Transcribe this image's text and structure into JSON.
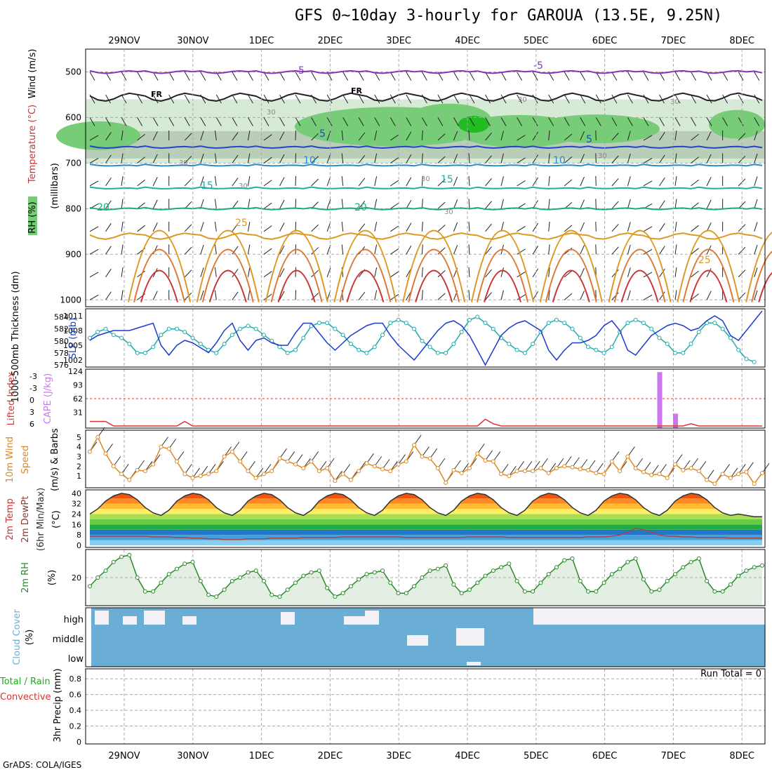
{
  "title": "GFS 0~10day 3-hourly for GAROUA (13.5E, 9.25N)",
  "credit": "GrADS: COLA/IGES",
  "dates": [
    "29NOV",
    "30NOV",
    "1DEC",
    "2DEC",
    "3DEC",
    "4DEC",
    "5DEC",
    "6DEC",
    "7DEC",
    "8DEC"
  ],
  "colors": {
    "grid": "#aaaaaa",
    "rh_dark": "#22bb22",
    "rh_mid": "#77cc77",
    "rh_light": "#d6ead6",
    "slp": "#1a3ccc",
    "thick": "#22aaaa",
    "cape": "#cc77ee",
    "li": "#dd3333",
    "wind": "#dd8822",
    "rh2m": "#2a8a2a",
    "cloud": "#6aaed6",
    "precip_total": "#22aa22"
  },
  "panels": {
    "profile": {
      "ylabel_wind": "Wind (m/s)",
      "ylabel_temp": "Temperature (°C)",
      "ylabel_rh": "RH (%)",
      "ylabel_mb": "(millibars)",
      "levels": [
        "500",
        "600",
        "700",
        "800",
        "900",
        "1000"
      ],
      "fr_label": "FR",
      "temp_labels": [
        "-5",
        "-5",
        "5",
        "5",
        "10",
        "10",
        "15",
        "15",
        "20",
        "20",
        "25",
        "25"
      ],
      "rh_labels": [
        "30",
        "30",
        "30",
        "30",
        "30",
        "30",
        "30",
        "30"
      ]
    },
    "slp": {
      "ylabel_thick": "1000-500mb Thickness (dm)",
      "ylabel_slp": "SLP (mb)",
      "thick_ticks": [
        "584",
        "582",
        "580",
        "578",
        "576"
      ],
      "slp_ticks": [
        "1011",
        "1008",
        "1005",
        "1002"
      ]
    },
    "cape": {
      "ylabel_li": "Lifted Index",
      "ylabel_cape": "CAPE (J/kg)",
      "li_ticks": [
        "-3",
        "-3",
        "0",
        "3",
        "6"
      ],
      "cape_ticks": [
        "124",
        "93",
        "62",
        "31"
      ]
    },
    "wind10": {
      "ylabel": "10m Wind Speed (m/s) & Barbs",
      "ylabel1": "10m Wind",
      "ylabel2": "Speed",
      "ylabel3": "(m/s) & Barbs",
      "ticks": [
        "5",
        "4",
        "3",
        "2",
        "1"
      ]
    },
    "temp2m": {
      "ylabel1": "2m Temp",
      "ylabel2": "2m DewPt",
      "ylabel3": "(6hr Min/Max)",
      "ylabel4": "(°C)",
      "ticks": [
        "40",
        "32",
        "24",
        "16",
        "8",
        "0"
      ]
    },
    "rh2m": {
      "ylabel1": "2m RH",
      "ylabel2": "(%)",
      "ticks": [
        "20"
      ]
    },
    "cloud": {
      "ylabel1": "Cloud Cover",
      "ylabel2": "(%)",
      "rows": [
        "high",
        "middle",
        "low"
      ]
    },
    "precip": {
      "ylabel1": "Total / Rain",
      "ylabel2": "Convective",
      "ylabel3": "3hr Precip (mm)",
      "ticks": [
        "0.8",
        "0.6",
        "0.4",
        "0.2",
        "0"
      ],
      "run_total": "Run Total = 0"
    }
  },
  "chart_data": [
    {
      "type": "line",
      "name": "1000-500mb thickness",
      "units": "dm",
      "ylim": [
        576,
        585
      ],
      "values": [
        580.5,
        581.5,
        582,
        581,
        580.5,
        579.5,
        578,
        578,
        579,
        581,
        582,
        582,
        581.5,
        580.5,
        579.5,
        578.5,
        578,
        579.5,
        581,
        582,
        582.5,
        582,
        581,
        580,
        579,
        578,
        578.5,
        580.5,
        582.5,
        583,
        583,
        582,
        581,
        579.5,
        578.5,
        578,
        579,
        581,
        583,
        583.5,
        583,
        582,
        580,
        579,
        578,
        578,
        579.5,
        581.5,
        583.5,
        584,
        583,
        582,
        580.5,
        579.5,
        578.5,
        578,
        579.5,
        581.5,
        583,
        583.5,
        583,
        582,
        580.5,
        579,
        578.5,
        578,
        579,
        581.5,
        583,
        583.5,
        583,
        582,
        580.5,
        579.5,
        578,
        578,
        579.5,
        581.5,
        583,
        583,
        582,
        580.5,
        578.5,
        577,
        576.5
      ]
    },
    {
      "type": "line",
      "name": "SLP",
      "units": "mb",
      "ylim": [
        1001,
        1012
      ],
      "values": [
        1006,
        1007,
        1007.5,
        1008,
        1008,
        1008,
        1008.5,
        1009,
        1009.5,
        1005,
        1003,
        1005,
        1006,
        1005.5,
        1004.5,
        1003.5,
        1005.5,
        1008,
        1009.5,
        1006,
        1004,
        1006,
        1006.5,
        1005.5,
        1005,
        1005,
        1007.5,
        1009.5,
        1009.5,
        1007.5,
        1005.5,
        1004,
        1005.5,
        1007,
        1008,
        1009,
        1009.5,
        1009.5,
        1007,
        1005,
        1003.5,
        1002,
        1004,
        1006,
        1008,
        1009.5,
        1010,
        1009,
        1007,
        1004,
        1001,
        1004,
        1007,
        1008.5,
        1009.5,
        1010,
        1009,
        1008,
        1004,
        1002,
        1004,
        1005.5,
        1005.5,
        1006,
        1007,
        1009,
        1010,
        1008,
        1004,
        1003,
        1005,
        1007,
        1008,
        1009,
        1009.5,
        1009,
        1008,
        1008.5,
        1010,
        1011,
        1010,
        1007,
        1006,
        1008,
        1010,
        1012
      ]
    },
    {
      "type": "bar",
      "name": "CAPE",
      "units": "J/kg",
      "ylim": [
        0,
        124
      ],
      "values": [
        0,
        0,
        0,
        0,
        0,
        0,
        0,
        0,
        0,
        0,
        0,
        0,
        0,
        0,
        0,
        0,
        0,
        0,
        0,
        0,
        0,
        0,
        0,
        0,
        0,
        0,
        0,
        0,
        0,
        0,
        0,
        0,
        0,
        0,
        0,
        0,
        0,
        0,
        0,
        0,
        0,
        0,
        0,
        0,
        0,
        0,
        0,
        0,
        0,
        0,
        0,
        0,
        0,
        0,
        0,
        0,
        0,
        0,
        0,
        0,
        0,
        0,
        0,
        0,
        0,
        0,
        0,
        0,
        0,
        0,
        0,
        0,
        122,
        0,
        28,
        0,
        0,
        0,
        0,
        0,
        0,
        0,
        0,
        0,
        0,
        0
      ]
    },
    {
      "type": "line",
      "name": "Lifted Index",
      "ylim": [
        6,
        -6
      ],
      "values": [
        5,
        5,
        5,
        6,
        6,
        6,
        6,
        6,
        6,
        6,
        6,
        6,
        5,
        6,
        6,
        6,
        6,
        6,
        6,
        6,
        6,
        6,
        6,
        6,
        6,
        6,
        6,
        6,
        6,
        6,
        6,
        6,
        6,
        6,
        6,
        6,
        6,
        6,
        6,
        6,
        6,
        6,
        6,
        6,
        6,
        6,
        6,
        6,
        6,
        6,
        4.5,
        5.5,
        6,
        6,
        6,
        6,
        6,
        6,
        6,
        6,
        6,
        6,
        6,
        6,
        6,
        6,
        6,
        6,
        6,
        6,
        6,
        6,
        6,
        6,
        6,
        6,
        5.5,
        6,
        6,
        6,
        6,
        6,
        6,
        6,
        6,
        6
      ]
    },
    {
      "type": "line",
      "name": "10m wind speed",
      "units": "m/s",
      "ylim": [
        0,
        5.5
      ],
      "values": [
        3.5,
        5,
        3.3,
        2,
        1.2,
        0.6,
        1.6,
        1.5,
        2.2,
        4,
        3.8,
        2.5,
        1.2,
        0.8,
        1,
        1.2,
        1.5,
        3,
        3.5,
        2.5,
        1.5,
        0.8,
        1.2,
        1.5,
        2.8,
        2.5,
        2.2,
        1.8,
        2.5,
        1.5,
        1.8,
        0.5,
        1.2,
        0.6,
        1.5,
        2.3,
        2,
        1.7,
        1.5,
        2.2,
        2.5,
        4.2,
        3,
        2.8,
        1.8,
        0.3,
        1.6,
        1.3,
        1.8,
        3.3,
        2.6,
        2.5,
        1.2,
        1,
        1.5,
        1.5,
        1.5,
        1.8,
        1.3,
        1.8,
        2,
        1.9,
        1.7,
        1.6,
        1.3,
        1.2,
        2.5,
        1.5,
        3,
        1.8,
        1.4,
        1.1,
        1.2,
        0.8,
        2.2,
        1.6,
        1.8,
        1.5,
        0.6,
        0.2,
        1.2,
        0.8,
        1.2,
        1.4,
        0.2,
        1.3
      ]
    },
    {
      "type": "line",
      "name": "2m temperature",
      "units": "°C",
      "ylim": [
        0,
        41
      ],
      "values": [
        24,
        28,
        34,
        38,
        40,
        39,
        35,
        29,
        25,
        23,
        27,
        34,
        38,
        40,
        39,
        35,
        29,
        25,
        23,
        27,
        34,
        38,
        40,
        39,
        35,
        29,
        25,
        23,
        27,
        34,
        38,
        40,
        39,
        35,
        29,
        25,
        23,
        27,
        34,
        38,
        40,
        39,
        35,
        29,
        25,
        23,
        27,
        34,
        38,
        40,
        39,
        35,
        29,
        25,
        23,
        27,
        34,
        38,
        40,
        39,
        35,
        29,
        25,
        23,
        27,
        34,
        38,
        40,
        39,
        35,
        29,
        25,
        23,
        27,
        34,
        38,
        40,
        39,
        35,
        29,
        25,
        23,
        24,
        23,
        22,
        22
      ]
    },
    {
      "type": "line",
      "name": "2m dewpoint",
      "units": "°C",
      "ylim": [
        0,
        41
      ],
      "values": [
        7,
        7,
        7,
        7,
        7,
        7,
        7,
        7,
        6.5,
        6.5,
        6.5,
        6,
        6,
        5.5,
        5.5,
        5,
        5,
        4.5,
        4.5,
        4.5,
        5,
        5,
        5,
        5.5,
        5.5,
        5.5,
        5.5,
        6,
        6,
        6,
        6,
        6,
        6.5,
        6.5,
        6.5,
        6.5,
        6.5,
        6.5,
        6.5,
        6.5,
        6,
        6,
        6,
        6,
        6,
        6,
        6,
        6,
        6.5,
        6.5,
        6.5,
        6.5,
        6.5,
        6,
        6,
        6,
        6,
        6,
        6,
        6,
        6,
        6,
        6,
        6.5,
        6.5,
        6.5,
        7,
        8,
        10,
        13,
        12,
        10,
        8,
        7,
        7,
        6.5,
        6.5,
        6,
        6,
        6,
        6,
        5.5,
        5.5,
        5.5,
        5.5,
        5.5
      ]
    },
    {
      "type": "line",
      "name": "2m RH",
      "units": "%",
      "ylim": [
        5,
        35
      ],
      "values": [
        15,
        20,
        24,
        29,
        32,
        33,
        20,
        12,
        12,
        17,
        22,
        25,
        28,
        29,
        18,
        10,
        9,
        13,
        18,
        20,
        23,
        24,
        18,
        10,
        9,
        13,
        17,
        21,
        23,
        24,
        14,
        9,
        11,
        15,
        19,
        22,
        23,
        24,
        17,
        11,
        11,
        15,
        20,
        24,
        25,
        27,
        16,
        11,
        13,
        17,
        21,
        24,
        26,
        28,
        18,
        12,
        12,
        17,
        22,
        26,
        30,
        31,
        18,
        12,
        12,
        17,
        22,
        25,
        29,
        31,
        19,
        12,
        13,
        18,
        22,
        26,
        29,
        31,
        18,
        12,
        12,
        16,
        21,
        24,
        26,
        27
      ]
    },
    {
      "type": "bar",
      "name": "3hr precip",
      "units": "mm",
      "ylim": [
        0,
        0.9
      ],
      "values": [],
      "run_total": 0
    }
  ]
}
